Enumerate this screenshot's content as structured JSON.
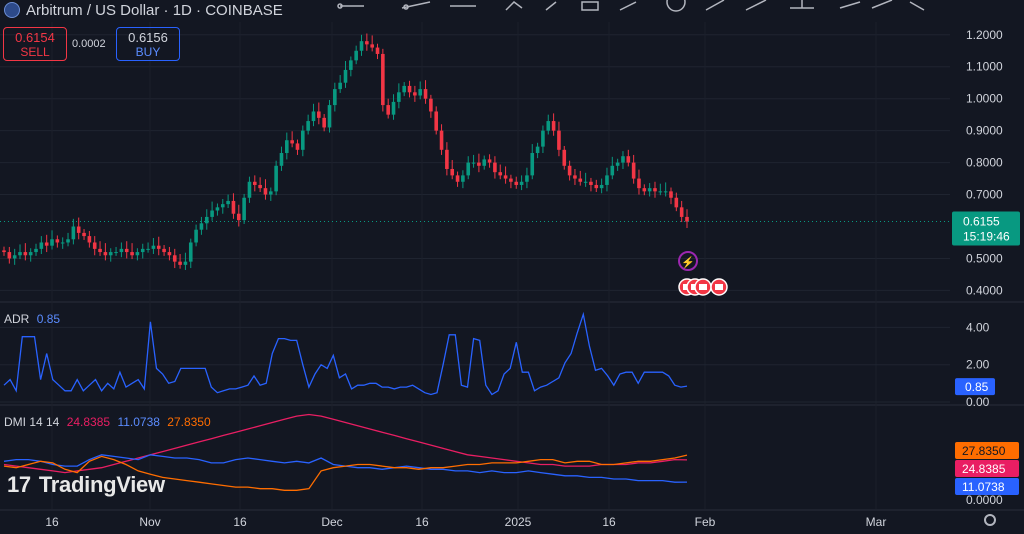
{
  "header": {
    "title": "Arbitrum / US Dollar · 1D · COINBASE",
    "sell_price": "0.6154",
    "sell_label": "SELL",
    "spread": "0.0002",
    "buy_price": "0.6156",
    "buy_label": "BUY"
  },
  "watermark": "TradingView",
  "colors": {
    "up": "#089981",
    "down": "#f23645",
    "adr": "#2962ff",
    "dmi_plus": "#e91e63",
    "dmi_minus": "#2962ff",
    "adx": "#ff6d00",
    "background": "#131722"
  },
  "chart_data": [
    {
      "type": "candlestick",
      "title": "Arbitrum / US Dollar · 1D · COINBASE",
      "ylim": [
        0.37,
        1.24
      ],
      "y_ticks": [
        "1.2000",
        "1.1000",
        "1.0000",
        "0.9000",
        "0.8000",
        "0.7000",
        "0.5000",
        "0.4000"
      ],
      "x_ticks": [
        "16",
        "Nov",
        "16",
        "Dec",
        "16",
        "2025",
        "16",
        "Feb",
        "Mar"
      ],
      "close_series": [
        0.52,
        0.5,
        0.51,
        0.52,
        0.51,
        0.52,
        0.53,
        0.55,
        0.54,
        0.56,
        0.55,
        0.55,
        0.56,
        0.6,
        0.58,
        0.57,
        0.55,
        0.53,
        0.52,
        0.51,
        0.52,
        0.52,
        0.53,
        0.52,
        0.51,
        0.52,
        0.53,
        0.53,
        0.54,
        0.53,
        0.52,
        0.51,
        0.49,
        0.48,
        0.49,
        0.55,
        0.59,
        0.61,
        0.63,
        0.65,
        0.66,
        0.67,
        0.68,
        0.64,
        0.62,
        0.69,
        0.74,
        0.73,
        0.72,
        0.7,
        0.71,
        0.79,
        0.83,
        0.87,
        0.86,
        0.84,
        0.9,
        0.93,
        0.96,
        0.94,
        0.91,
        0.98,
        1.03,
        1.05,
        1.09,
        1.12,
        1.15,
        1.18,
        1.17,
        1.16,
        1.14,
        0.98,
        0.95,
        0.99,
        1.02,
        1.04,
        1.02,
        1.01,
        1.03,
        1.0,
        0.96,
        0.9,
        0.84,
        0.78,
        0.76,
        0.74,
        0.76,
        0.8,
        0.8,
        0.79,
        0.81,
        0.8,
        0.77,
        0.76,
        0.75,
        0.74,
        0.73,
        0.74,
        0.76,
        0.83,
        0.85,
        0.9,
        0.93,
        0.9,
        0.84,
        0.79,
        0.76,
        0.75,
        0.74,
        0.74,
        0.73,
        0.72,
        0.73,
        0.76,
        0.79,
        0.8,
        0.82,
        0.8,
        0.75,
        0.72,
        0.71,
        0.72,
        0.71,
        0.71,
        0.71,
        0.69,
        0.66,
        0.63,
        0.6155
      ],
      "annotations": [
        "earnings-bolt-icon",
        "us-flag-event-icon"
      ],
      "last_price": "0.6155",
      "countdown": "15:19:46",
      "grid": true
    },
    {
      "type": "line",
      "title": "ADR",
      "value": "0.85",
      "ylim": [
        0,
        5.2
      ],
      "y_ticks": [
        "4.00",
        "2.00",
        "0.00"
      ],
      "series": [
        {
          "name": "ADR",
          "values": [
            0.9,
            1.2,
            0.6,
            3.5,
            3.5,
            3.5,
            1.2,
            2.6,
            1.2,
            0.9,
            0.6,
            0.6,
            1.2,
            0.6,
            0.9,
            1.2,
            0.6,
            1.0,
            0.7,
            1.6,
            0.8,
            1.0,
            1.2,
            0.7,
            4.3,
            1.8,
            1.5,
            1.0,
            1.1,
            1.8,
            1.8,
            1.8,
            1.8,
            1.8,
            0.8,
            0.5,
            0.6,
            0.7,
            0.7,
            0.8,
            0.9,
            1.4,
            0.9,
            1.0,
            2.6,
            3.4,
            3.4,
            3.3,
            3.3,
            2.0,
            0.8,
            1.5,
            2.0,
            1.8,
            2.5,
            1.3,
            1.5,
            0.7,
            0.9,
            0.9,
            1.0,
            1.0,
            0.8,
            0.8,
            0.7,
            0.8,
            0.8,
            0.9,
            0.7,
            0.5,
            0.4,
            0.5,
            2.0,
            3.6,
            3.6,
            0.9,
            0.8,
            3.4,
            3.3,
            0.9,
            0.4,
            0.6,
            1.5,
            1.8,
            3.2,
            1.6,
            1.6,
            0.6,
            0.8,
            0.9,
            1.1,
            1.3,
            2.1,
            2.6,
            3.7,
            4.7,
            3.0,
            1.7,
            1.8,
            1.4,
            0.9,
            1.5,
            1.6,
            1.6,
            1.0,
            1.6,
            1.6,
            1.6,
            1.6,
            1.4,
            0.9,
            0.8,
            0.85
          ]
        }
      ]
    },
    {
      "type": "line",
      "title": "DMI 14 14",
      "ylim": [
        0,
        57
      ],
      "y_ticks": [
        "0.0000"
      ],
      "series": [
        {
          "name": "+DI",
          "value": "24.8385",
          "values": [
            22,
            21,
            20,
            19,
            18,
            17,
            18,
            19,
            20,
            22,
            24,
            26,
            28,
            30,
            32,
            34,
            36,
            38,
            40,
            42,
            44,
            46,
            48,
            50,
            52,
            53,
            52,
            50,
            48,
            46,
            44,
            42,
            40,
            38,
            36,
            34,
            32,
            30,
            28,
            27,
            26,
            25,
            24,
            23,
            22,
            22,
            21,
            21,
            21,
            22,
            22,
            22,
            23,
            23,
            24,
            25,
            24.8385
          ]
        },
        {
          "name": "-DI",
          "value": "11.0738",
          "values": [
            24,
            25,
            25,
            24,
            22,
            21,
            21,
            25,
            28,
            27,
            26,
            25,
            28,
            27,
            26,
            26,
            25,
            23,
            23,
            25,
            26,
            25,
            24,
            23,
            24,
            23,
            26,
            22,
            21,
            20,
            20,
            19,
            20,
            21,
            20,
            19,
            19,
            18,
            18,
            17,
            18,
            17,
            17,
            18,
            17,
            16,
            15,
            15,
            14,
            14,
            13,
            13,
            12,
            12,
            12,
            11,
            11.0738
          ]
        },
        {
          "name": "ADX",
          "value": "27.8350",
          "values": [
            21,
            20,
            22,
            24,
            23,
            19,
            17,
            24,
            27,
            25,
            22,
            18,
            16,
            14,
            13,
            12,
            11,
            10,
            9,
            8,
            8,
            7,
            7,
            6,
            6,
            7,
            18,
            20,
            21,
            22,
            22,
            21,
            20,
            20,
            19,
            20,
            20,
            21,
            22,
            22,
            23,
            23,
            23,
            24,
            25,
            25,
            23,
            24,
            24,
            22,
            22,
            23,
            24,
            24,
            25,
            26,
            27.835
          ]
        }
      ]
    }
  ]
}
